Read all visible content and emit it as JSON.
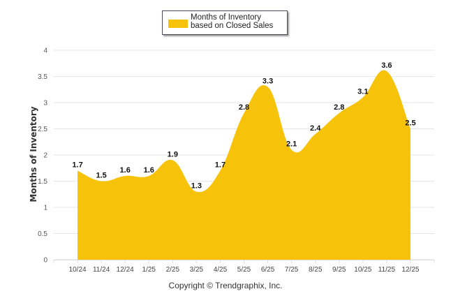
{
  "chart_data": {
    "type": "area",
    "title": "",
    "xlabel": "",
    "ylabel": "Months of Inventory",
    "ylim": [
      0,
      4
    ],
    "yticks": [
      "0",
      "0.5",
      "1",
      "1.5",
      "2",
      "2.5",
      "3",
      "3.5",
      "4"
    ],
    "categories": [
      "10/24",
      "11/24",
      "12/24",
      "1/25",
      "2/25",
      "3/25",
      "4/25",
      "5/25",
      "6/25",
      "7/25",
      "8/25",
      "9/25",
      "10/25",
      "11/25",
      "12/25"
    ],
    "series": [
      {
        "name": "Months of Inventory based on Closed Sales",
        "color": "#f7c30a",
        "values": [
          1.7,
          1.5,
          1.6,
          1.6,
          1.9,
          1.3,
          1.7,
          2.8,
          3.3,
          2.1,
          2.4,
          2.8,
          3.1,
          3.6,
          2.5
        ]
      }
    ],
    "grid": true,
    "legend": "top-center",
    "data_labels": true
  },
  "legend": {
    "label": "Months of Inventory based on Closed Sales"
  },
  "footer": {
    "copyright": "Copyright © Trendgraphix, Inc."
  }
}
